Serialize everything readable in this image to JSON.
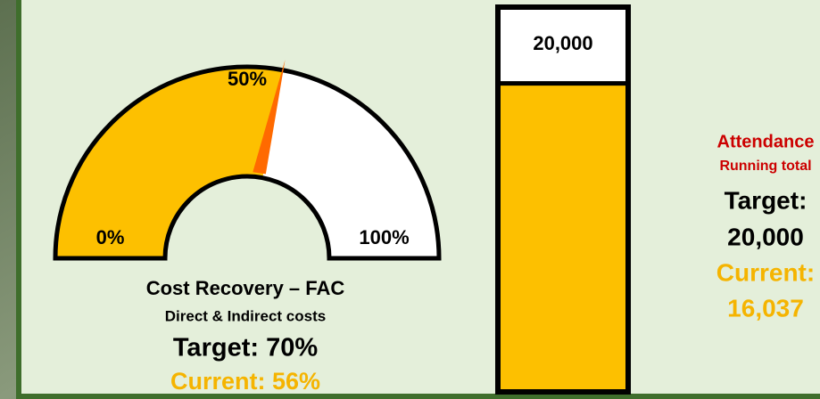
{
  "gauge": {
    "min": 0,
    "max": 100,
    "value": 56,
    "ticks": [
      {
        "value": 0,
        "label": "0%"
      },
      {
        "value": 50,
        "label": "50%"
      },
      {
        "value": 100,
        "label": "100%"
      }
    ],
    "title": "Cost Recovery – FAC",
    "subtitle": "Direct & Indirect costs",
    "target_label": "Target: 70%",
    "current_label": "Current: 56%"
  },
  "bar": {
    "max": 20000,
    "max_label": "20,000",
    "value": 16037,
    "title": "Attendance",
    "subtitle": "Running total",
    "target_label": "Target:",
    "target_value_label": "20,000",
    "current_label": "Current:",
    "value_label": "16,037"
  }
}
